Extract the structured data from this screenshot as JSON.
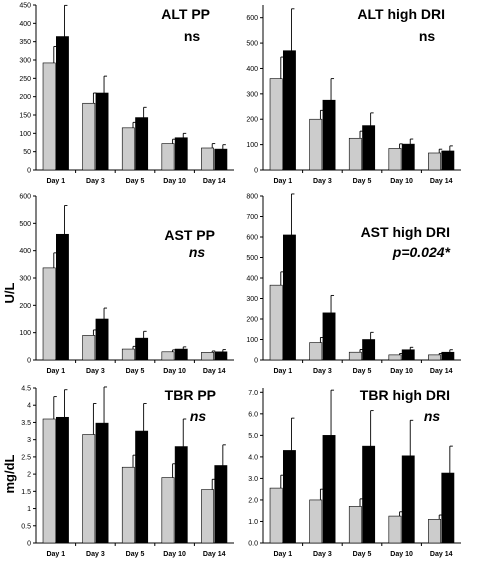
{
  "colors": {
    "series_gray": "#cccccc",
    "series_black": "#000000",
    "axis": "#000000"
  },
  "row_labels": [
    "",
    "U/L",
    "mg/dL"
  ],
  "chart_data": [
    {
      "type": "bar",
      "title": "ALT PP",
      "subtitle": "ns",
      "subtitle_italic": false,
      "categories": [
        "Day 1",
        "Day 3",
        "Day 5",
        "Day 10",
        "Day 14"
      ],
      "ylim": [
        0,
        450
      ],
      "yticks": [
        0,
        50,
        100,
        150,
        200,
        250,
        300,
        350,
        400,
        450
      ],
      "ytick_labels": [
        "0",
        "50",
        "100",
        "150",
        "200",
        "250",
        "300",
        "350",
        "400",
        "450"
      ],
      "series": [
        {
          "color": "#cccccc",
          "values": [
            292,
            182,
            115,
            72,
            60
          ],
          "errors": [
            45,
            28,
            15,
            12,
            12
          ]
        },
        {
          "color": "#000000",
          "values": [
            364,
            210,
            143,
            88,
            57
          ],
          "errors": [
            85,
            46,
            28,
            12,
            12
          ]
        }
      ]
    },
    {
      "type": "bar",
      "title": "ALT high DRI",
      "subtitle": "ns",
      "subtitle_italic": false,
      "categories": [
        "Day 1",
        "Day 3",
        "Day 5",
        "Day 10",
        "Day 14"
      ],
      "ylim": [
        0,
        650
      ],
      "yticks": [
        0,
        100,
        200,
        300,
        400,
        500,
        600
      ],
      "ytick_labels": [
        "0",
        "100",
        "200",
        "300",
        "400",
        "500",
        "600"
      ],
      "series": [
        {
          "color": "#cccccc",
          "values": [
            360,
            200,
            125,
            85,
            67
          ],
          "errors": [
            85,
            35,
            28,
            18,
            15
          ]
        },
        {
          "color": "#000000",
          "values": [
            470,
            275,
            175,
            102,
            75
          ],
          "errors": [
            165,
            85,
            50,
            20,
            20
          ]
        }
      ]
    },
    {
      "type": "bar",
      "title": "AST PP",
      "subtitle": "ns",
      "subtitle_italic": true,
      "categories": [
        "Day 1",
        "Day 3",
        "Day 5",
        "Day 10",
        "Day 14"
      ],
      "ylim": [
        0,
        600
      ],
      "yticks": [
        0,
        100,
        200,
        300,
        400,
        500,
        600
      ],
      "ytick_labels": [
        "0",
        "100",
        "200",
        "300",
        "400",
        "500",
        "600"
      ],
      "series": [
        {
          "color": "#cccccc",
          "values": [
            337,
            90,
            40,
            30,
            28
          ],
          "errors": [
            55,
            20,
            10,
            7,
            5
          ]
        },
        {
          "color": "#000000",
          "values": [
            460,
            150,
            80,
            40,
            30
          ],
          "errors": [
            105,
            40,
            25,
            8,
            8
          ]
        }
      ]
    },
    {
      "type": "bar",
      "title": "AST high DRI",
      "subtitle": "p=0.024*",
      "subtitle_italic": true,
      "categories": [
        "Day 1",
        "Day 3",
        "Day 5",
        "Day 10",
        "Day 14"
      ],
      "ylim": [
        0,
        800
      ],
      "yticks": [
        0,
        100,
        200,
        300,
        400,
        500,
        600,
        700,
        800
      ],
      "ytick_labels": [
        "0",
        "100",
        "200",
        "300",
        "400",
        "500",
        "600",
        "700",
        "800"
      ],
      "series": [
        {
          "color": "#cccccc",
          "values": [
            365,
            85,
            38,
            25,
            25
          ],
          "errors": [
            65,
            25,
            13,
            7,
            7
          ]
        },
        {
          "color": "#000000",
          "values": [
            610,
            230,
            100,
            50,
            38
          ],
          "errors": [
            200,
            85,
            35,
            12,
            12
          ]
        }
      ]
    },
    {
      "type": "bar",
      "title": "TBR PP",
      "subtitle": "ns",
      "subtitle_italic": true,
      "categories": [
        "Day 1",
        "Day 3",
        "Day 5",
        "Day 10",
        "Day 14"
      ],
      "ylim": [
        0,
        4.5
      ],
      "yticks": [
        0,
        0.5,
        1,
        1.5,
        2,
        2.5,
        3,
        3.5,
        4,
        4.5
      ],
      "ytick_labels": [
        "0",
        "0.5",
        "1",
        "1.5",
        "2",
        "2.5",
        "3",
        "3.5",
        "4",
        "4.5"
      ],
      "series": [
        {
          "color": "#cccccc",
          "values": [
            3.6,
            3.15,
            2.2,
            1.9,
            1.55
          ],
          "errors": [
            0.65,
            0.9,
            0.35,
            0.4,
            0.3
          ]
        },
        {
          "color": "#000000",
          "values": [
            3.65,
            3.48,
            3.25,
            2.8,
            2.25
          ],
          "errors": [
            0.8,
            1.05,
            0.8,
            0.8,
            0.6
          ]
        }
      ]
    },
    {
      "type": "bar",
      "title": "TBR high DRI",
      "subtitle": "ns",
      "subtitle_italic": true,
      "categories": [
        "Day 1",
        "Day 3",
        "Day 5",
        "Day 10",
        "Day 14"
      ],
      "ylim": [
        0,
        7.2
      ],
      "yticks": [
        0,
        1,
        2,
        3,
        4,
        5,
        6,
        7
      ],
      "ytick_labels": [
        "0.0",
        "1.0",
        "2.0",
        "3.0",
        "4.0",
        "5.0",
        "6.0",
        "7.0"
      ],
      "series": [
        {
          "color": "#cccccc",
          "values": [
            2.55,
            2.0,
            1.7,
            1.25,
            1.1
          ],
          "errors": [
            0.6,
            0.5,
            0.35,
            0.2,
            0.2
          ]
        },
        {
          "color": "#000000",
          "values": [
            4.3,
            5.0,
            4.5,
            4.05,
            3.25
          ],
          "errors": [
            1.5,
            2.1,
            1.65,
            1.65,
            1.25
          ]
        }
      ]
    }
  ]
}
